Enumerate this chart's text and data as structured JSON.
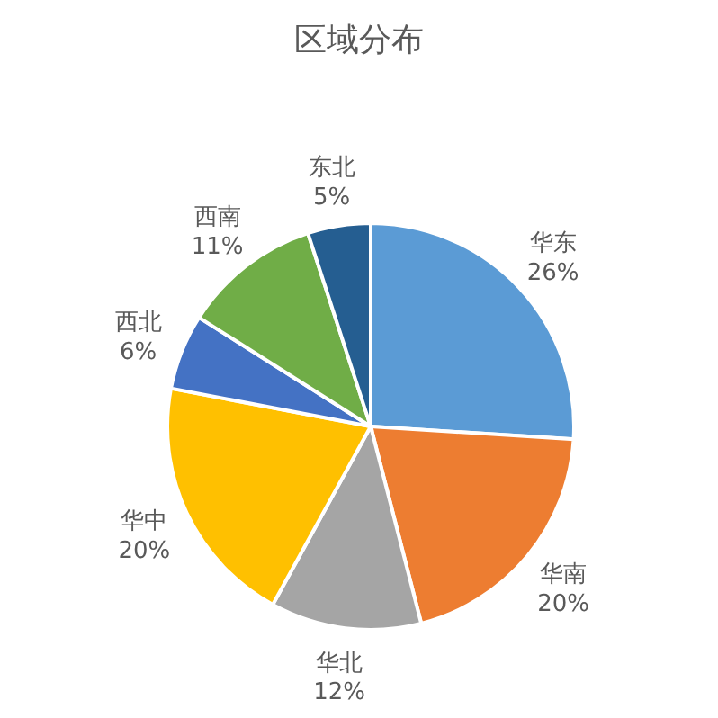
{
  "chart_data": {
    "type": "pie",
    "title": "区域分布",
    "categories": [
      "华东",
      "华南",
      "华北",
      "华中",
      "西北",
      "西南",
      "东北"
    ],
    "values": [
      26,
      20,
      12,
      20,
      6,
      11,
      5
    ],
    "value_labels": [
      "26%",
      "20%",
      "12%",
      "20%",
      "6%",
      "11%",
      "5%"
    ],
    "colors": [
      "#5b9bd5",
      "#ed7d31",
      "#a5a5a5",
      "#ffc000",
      "#4472c4",
      "#70ad47",
      "#255e91"
    ]
  }
}
